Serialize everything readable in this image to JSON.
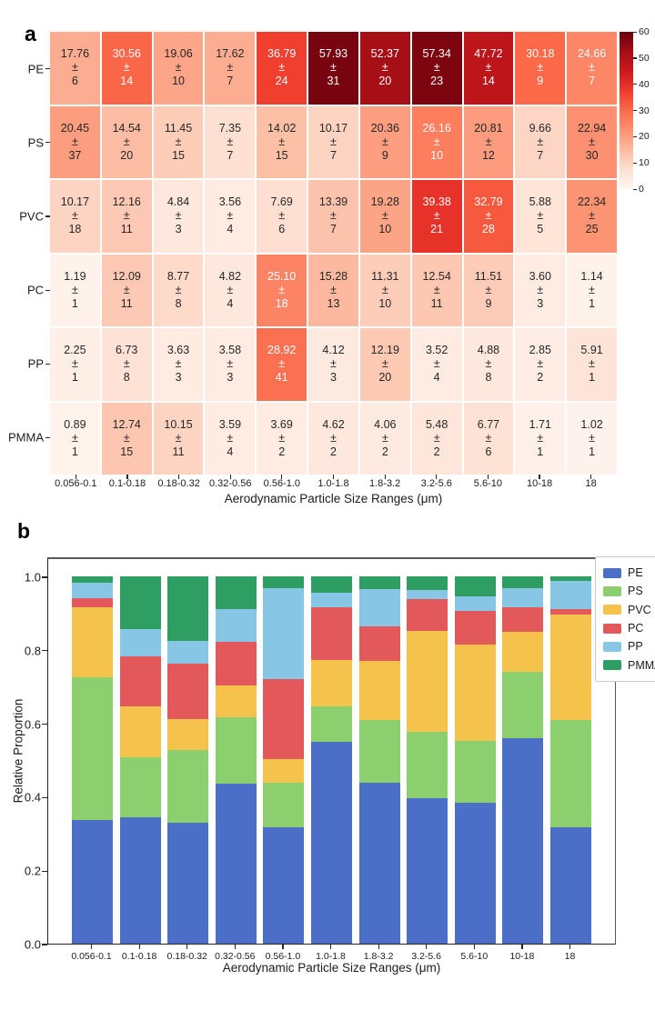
{
  "figure": {
    "panel_a_label": "a",
    "panel_b_label": "b"
  },
  "chart_data": [
    {
      "panel": "a",
      "type": "heatmap",
      "rows": [
        "PE",
        "PS",
        "PVC",
        "PC",
        "PP",
        "PMMA"
      ],
      "categories": [
        "0.056-0.1",
        "0.1-0.18",
        "0.18-0.32",
        "0.32-0.56",
        "0.56-1.0",
        "1.0-1.8",
        "1.8-3.2",
        "3.2-5.6",
        "5.6-10",
        "10-18",
        "18"
      ],
      "xlabel": "Aerodynamic Particle Size Ranges (μm)",
      "plus_minus": "±",
      "values": [
        [
          17.76,
          30.56,
          19.06,
          17.62,
          36.79,
          57.93,
          52.37,
          57.34,
          47.72,
          30.18,
          24.66
        ],
        [
          20.45,
          14.54,
          11.45,
          7.35,
          14.02,
          10.17,
          20.36,
          26.16,
          20.81,
          9.66,
          22.94
        ],
        [
          10.17,
          12.16,
          4.84,
          3.56,
          7.69,
          13.39,
          19.28,
          39.38,
          32.79,
          5.88,
          22.34
        ],
        [
          1.19,
          12.09,
          8.77,
          4.82,
          25.1,
          15.28,
          11.31,
          12.54,
          11.51,
          3.6,
          1.14
        ],
        [
          2.25,
          6.73,
          3.63,
          3.58,
          28.92,
          4.12,
          12.19,
          3.52,
          4.88,
          2.85,
          5.91
        ],
        [
          0.89,
          12.74,
          10.15,
          3.59,
          3.69,
          4.62,
          4.06,
          5.48,
          6.77,
          1.71,
          1.02
        ]
      ],
      "errors": [
        [
          6,
          14,
          10,
          7,
          24,
          31,
          20,
          23,
          14,
          9,
          7
        ],
        [
          37,
          20,
          15,
          7,
          15,
          7,
          9,
          10,
          12,
          7,
          30
        ],
        [
          18,
          11,
          3,
          4,
          6,
          7,
          10,
          21,
          28,
          5,
          25
        ],
        [
          1,
          11,
          8,
          4,
          18,
          13,
          10,
          11,
          9,
          3,
          1
        ],
        [
          1,
          8,
          3,
          3,
          41,
          3,
          20,
          4,
          8,
          2,
          1
        ],
        [
          1,
          15,
          11,
          4,
          2,
          2,
          2,
          2,
          6,
          1,
          1
        ]
      ],
      "colormap": "Reds",
      "vmin": 0,
      "vmax": 60,
      "colorbar_ticks": [
        0,
        10,
        20,
        30,
        40,
        50,
        60
      ]
    },
    {
      "panel": "b",
      "type": "bar",
      "stacked": true,
      "categories": [
        "0.056-0.1",
        "0.1-0.18",
        "0.18-0.32",
        "0.32-0.56",
        "0.56-1.0",
        "1.0-1.8",
        "1.8-3.2",
        "3.2-5.6",
        "5.6-10",
        "10-18",
        "18"
      ],
      "xlabel": "Aerodynamic Particle Size Ranges (μm)",
      "ylabel": "Relative Proportion",
      "ylim": [
        0,
        1.0
      ],
      "yticks": [
        "0.0",
        "0.2",
        "0.4",
        "0.6",
        "0.8",
        "1.0"
      ],
      "grid": false,
      "legend_position": "upper right",
      "series": [
        {
          "name": "PE",
          "color": "#4b6fc6",
          "values": [
            0.337,
            0.344,
            0.329,
            0.435,
            0.317,
            0.549,
            0.438,
            0.397,
            0.383,
            0.56,
            0.316
          ]
        },
        {
          "name": "PS",
          "color": "#8ccf6e",
          "values": [
            0.388,
            0.164,
            0.198,
            0.181,
            0.121,
            0.096,
            0.17,
            0.181,
            0.167,
            0.179,
            0.294
          ]
        },
        {
          "name": "PVC",
          "color": "#f5c34c",
          "values": [
            0.193,
            0.137,
            0.084,
            0.088,
            0.066,
            0.127,
            0.161,
            0.273,
            0.263,
            0.109,
            0.286
          ]
        },
        {
          "name": "PC",
          "color": "#e2585b",
          "values": [
            0.023,
            0.136,
            0.151,
            0.119,
            0.216,
            0.145,
            0.095,
            0.087,
            0.092,
            0.067,
            0.015
          ]
        },
        {
          "name": "PP",
          "color": "#87c7e5",
          "values": [
            0.043,
            0.076,
            0.063,
            0.088,
            0.249,
            0.039,
            0.102,
            0.024,
            0.039,
            0.053,
            0.076
          ]
        },
        {
          "name": "PMMA",
          "color": "#2e9e62",
          "values": [
            0.017,
            0.143,
            0.175,
            0.089,
            0.032,
            0.044,
            0.034,
            0.038,
            0.054,
            0.032,
            0.013
          ]
        }
      ]
    }
  ]
}
